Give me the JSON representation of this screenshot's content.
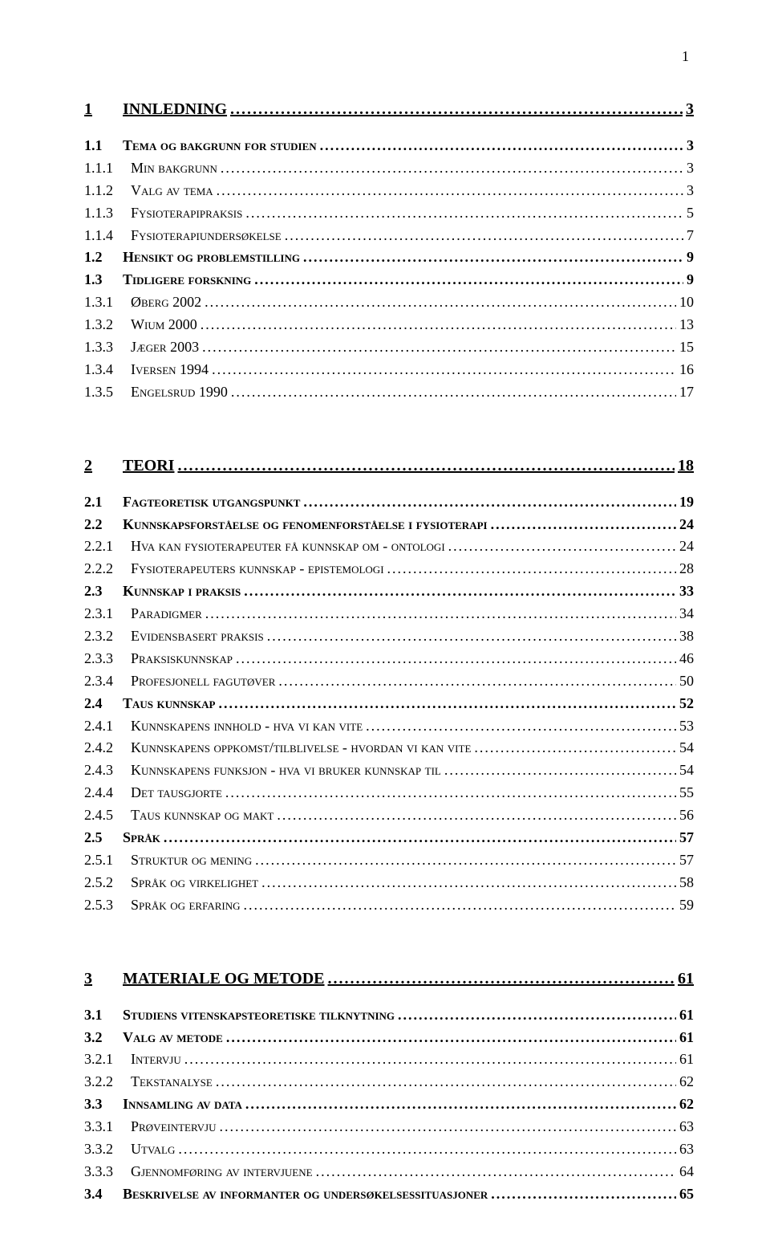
{
  "page_number": "1",
  "toc": [
    {
      "level": 1,
      "num": "1",
      "label": "INNLEDNING",
      "page": "3",
      "gap_after": "small"
    },
    {
      "level": 2,
      "num": "1.1",
      "label": "Tema og bakgrunn for studien",
      "page": "3"
    },
    {
      "level": 3,
      "num": "1.1.1",
      "label": "Min bakgrunn",
      "page": "3"
    },
    {
      "level": 3,
      "num": "1.1.2",
      "label": "Valg av tema",
      "page": "3"
    },
    {
      "level": 3,
      "num": "1.1.3",
      "label": "Fysioterapipraksis",
      "page": "5"
    },
    {
      "level": 3,
      "num": "1.1.4",
      "label": "Fysioterapiundersøkelse",
      "page": "7"
    },
    {
      "level": 2,
      "num": "1.2",
      "label": "Hensikt og problemstilling",
      "page": "9"
    },
    {
      "level": 2,
      "num": "1.3",
      "label": "Tidligere forskning",
      "page": "9"
    },
    {
      "level": 3,
      "num": "1.3.1",
      "label": "Øberg 2002",
      "page": "10"
    },
    {
      "level": 3,
      "num": "1.3.2",
      "label": "Wium 2000",
      "page": "13"
    },
    {
      "level": 3,
      "num": "1.3.3",
      "label": "Jæger 2003",
      "page": "15"
    },
    {
      "level": 3,
      "num": "1.3.4",
      "label": "Iversen 1994",
      "page": "16"
    },
    {
      "level": 3,
      "num": "1.3.5",
      "label": "Engelsrud 1990",
      "page": "17",
      "gap_after": "section"
    },
    {
      "level": 1,
      "num": "2",
      "label": "TEORI",
      "page": "18",
      "gap_after": "small"
    },
    {
      "level": 2,
      "num": "2.1",
      "label": "Fagteoretisk utgangspunkt",
      "page": "19"
    },
    {
      "level": 2,
      "num": "2.2",
      "label": "Kunnskapsforståelse og fenomenforståelse i fysioterapi",
      "page": "24"
    },
    {
      "level": 3,
      "num": "2.2.1",
      "label": "Hva kan fysioterapeuter få kunnskap om - ontologi",
      "page": "24"
    },
    {
      "level": 3,
      "num": "2.2.2",
      "label": "Fysioterapeuters kunnskap - epistemologi",
      "page": "28"
    },
    {
      "level": 2,
      "num": "2.3",
      "label": "Kunnskap i praksis",
      "page": "33"
    },
    {
      "level": 3,
      "num": "2.3.1",
      "label": "Paradigmer",
      "page": "34"
    },
    {
      "level": 3,
      "num": "2.3.2",
      "label": "Evidensbasert praksis",
      "page": "38"
    },
    {
      "level": 3,
      "num": "2.3.3",
      "label": "Praksiskunnskap",
      "page": "46"
    },
    {
      "level": 3,
      "num": "2.3.4",
      "label": "Profesjonell fagutøver",
      "page": "50"
    },
    {
      "level": 2,
      "num": "2.4",
      "label": "Taus kunnskap",
      "page": "52"
    },
    {
      "level": 3,
      "num": "2.4.1",
      "label": "Kunnskapens innhold - hva vi kan vite",
      "page": "53"
    },
    {
      "level": 3,
      "num": "2.4.2",
      "label": "Kunnskapens oppkomst/tilblivelse - hvordan vi kan vite",
      "page": "54"
    },
    {
      "level": 3,
      "num": "2.4.3",
      "label": "Kunnskapens funksjon - hva vi bruker kunnskap til",
      "page": "54"
    },
    {
      "level": 3,
      "num": "2.4.4",
      "label": "Det tausgjorte",
      "page": "55"
    },
    {
      "level": 3,
      "num": "2.4.5",
      "label": "Taus kunnskap og makt",
      "page": "56"
    },
    {
      "level": 2,
      "num": "2.5",
      "label": "Språk",
      "page": "57"
    },
    {
      "level": 3,
      "num": "2.5.1",
      "label": "Struktur og mening",
      "page": "57"
    },
    {
      "level": 3,
      "num": "2.5.2",
      "label": "Språk og virkelighet",
      "page": "58"
    },
    {
      "level": 3,
      "num": "2.5.3",
      "label": "Språk og erfaring",
      "page": "59",
      "gap_after": "section"
    },
    {
      "level": 1,
      "num": "3",
      "label": "MATERIALE OG METODE",
      "page": "61",
      "gap_after": "small"
    },
    {
      "level": 2,
      "num": "3.1",
      "label": "Studiens vitenskapsteoretiske tilknytning",
      "page": "61"
    },
    {
      "level": 2,
      "num": "3.2",
      "label": "Valg av metode",
      "page": "61"
    },
    {
      "level": 3,
      "num": "3.2.1",
      "label": "Intervju",
      "page": "61"
    },
    {
      "level": 3,
      "num": "3.2.2",
      "label": "Tekstanalyse",
      "page": "62"
    },
    {
      "level": 2,
      "num": "3.3",
      "label": "Innsamling av data",
      "page": "62"
    },
    {
      "level": 3,
      "num": "3.3.1",
      "label": "Prøveintervju",
      "page": "63"
    },
    {
      "level": 3,
      "num": "3.3.2",
      "label": "Utvalg",
      "page": "63"
    },
    {
      "level": 3,
      "num": "3.3.3",
      "label": "Gjennomføring av intervjuene",
      "page": "64"
    },
    {
      "level": 2,
      "num": "3.4",
      "label": "Beskrivelse av informanter og undersøkelsessituasjoner",
      "page": "65"
    }
  ]
}
